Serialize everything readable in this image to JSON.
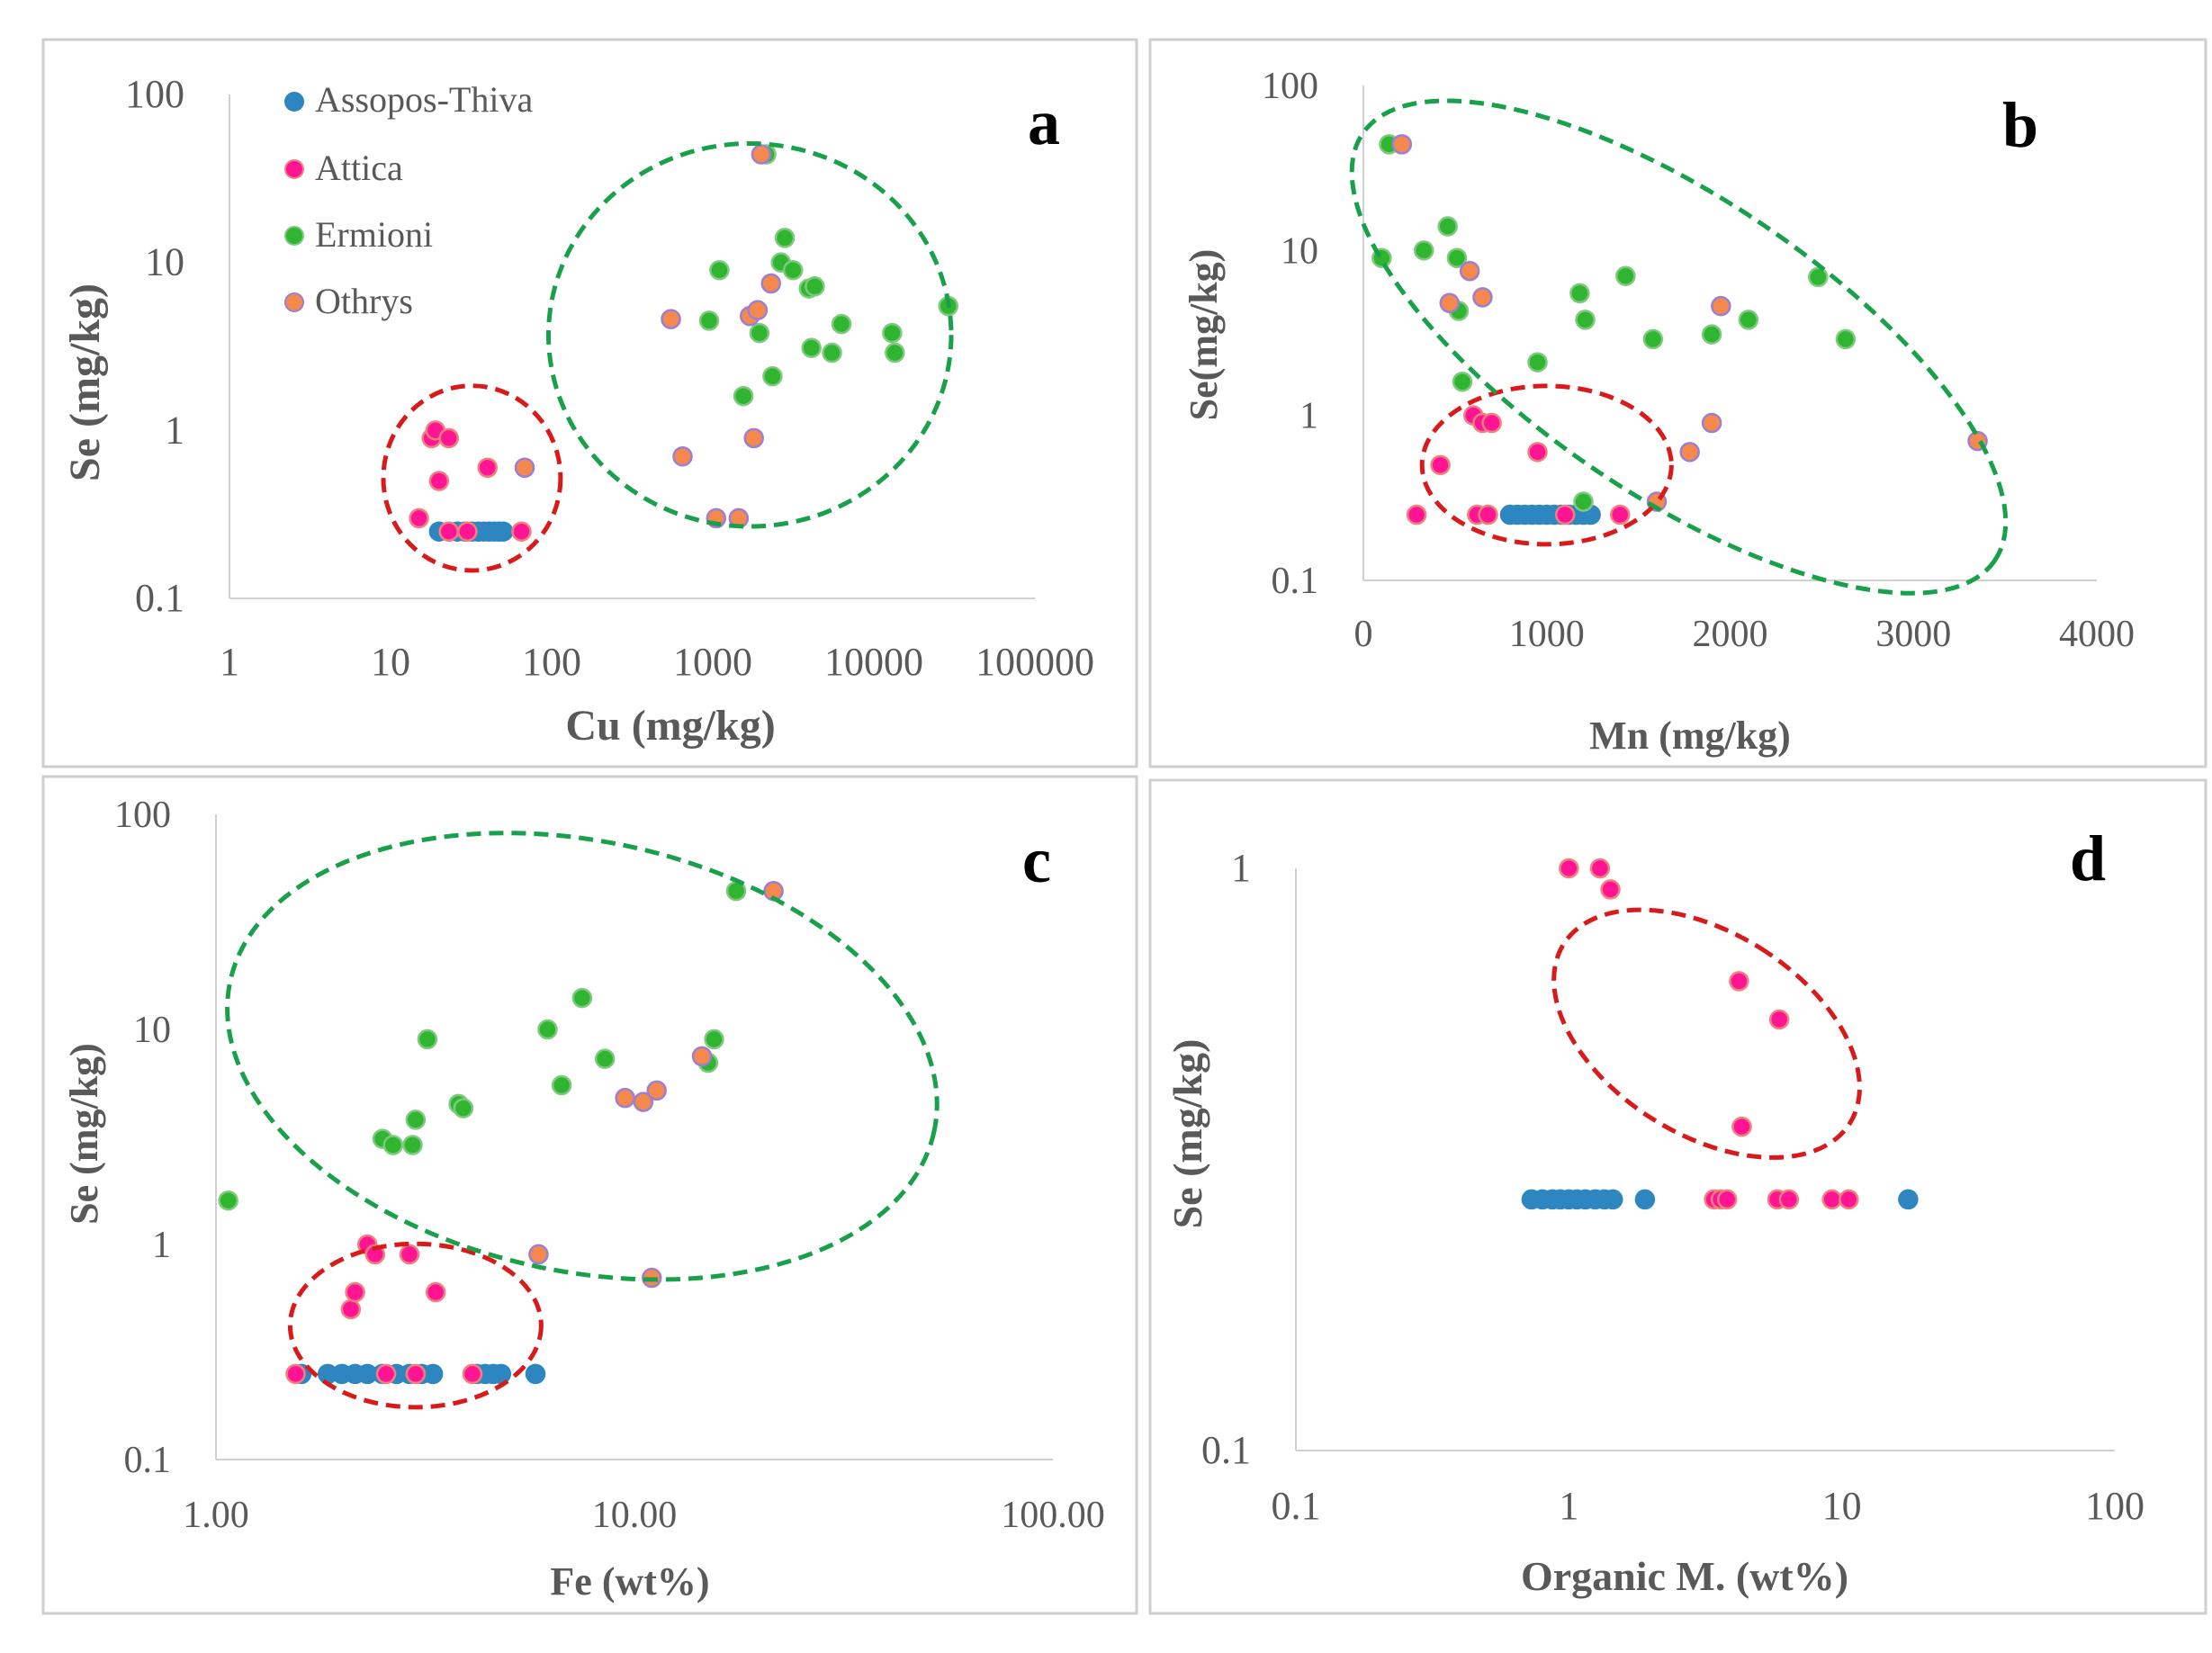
{
  "legend": [
    {
      "name": "Assopos-Thiva",
      "color": "#2e86c1",
      "edge": "#2e86c1"
    },
    {
      "name": "Attica",
      "color": "#ff1493",
      "edge": "#f08080"
    },
    {
      "name": "Ermioni",
      "color": "#2fb52f",
      "edge": "#7fc97f"
    },
    {
      "name": "Othrys",
      "color": "#f5894d",
      "edge": "#9b7fd4"
    }
  ],
  "chart_data": [
    {
      "panel_letter": "a",
      "type": "scatter",
      "x_scale": "log",
      "y_scale": "log",
      "xlabel": "Cu (mg/kg)",
      "ylabel": "Se (mg/kg)",
      "xlim": [
        1,
        100000
      ],
      "ylim": [
        0.1,
        100
      ],
      "x_tick_labels": [
        "1",
        "10",
        "100",
        "1000",
        "10000",
        "100000"
      ],
      "y_tick_labels": [
        "0.1",
        "1",
        "10",
        "100"
      ],
      "show_legend": true,
      "series": [
        {
          "name": "Assopos-Thiva",
          "points": [
            [
              20,
              0.25
            ],
            [
              23,
              0.25
            ],
            [
              26,
              0.25
            ],
            [
              29,
              0.25
            ],
            [
              32,
              0.25
            ],
            [
              35,
              0.25
            ],
            [
              38,
              0.25
            ],
            [
              41,
              0.25
            ],
            [
              44,
              0.25
            ],
            [
              47,
              0.25
            ],
            [
              50,
              0.25
            ]
          ]
        },
        {
          "name": "Attica",
          "points": [
            [
              15,
              0.3
            ],
            [
              18,
              0.9
            ],
            [
              19,
              1.0
            ],
            [
              20,
              0.5
            ],
            [
              23,
              0.9
            ],
            [
              40,
              0.6
            ],
            [
              65,
              0.25
            ],
            [
              23,
              0.25
            ],
            [
              30,
              0.25
            ]
          ]
        },
        {
          "name": "Ermioni",
          "points": [
            [
              950,
              4.5
            ],
            [
              1100,
              9
            ],
            [
              1550,
              1.6
            ],
            [
              1950,
              3.8
            ],
            [
              2150,
              44
            ],
            [
              2350,
              2.1
            ],
            [
              2650,
              10
            ],
            [
              2800,
              14
            ],
            [
              3150,
              9
            ],
            [
              3950,
              7
            ],
            [
              4300,
              7.2
            ],
            [
              4100,
              3.1
            ],
            [
              5500,
              2.9
            ],
            [
              6300,
              4.3
            ],
            [
              13000,
              3.8
            ],
            [
              13500,
              2.9
            ],
            [
              29000,
              5.5
            ]
          ]
        },
        {
          "name": "Othrys",
          "points": [
            [
              550,
              4.6
            ],
            [
              650,
              0.7
            ],
            [
              1050,
              0.3
            ],
            [
              1450,
              0.3
            ],
            [
              1700,
              4.8
            ],
            [
              1800,
              0.9
            ],
            [
              1900,
              5.2
            ],
            [
              2000,
              44
            ],
            [
              2300,
              7.5
            ],
            [
              68,
              0.6
            ]
          ]
        }
      ],
      "ellipses": [
        {
          "color": "#d91a1a",
          "cx": 32,
          "cy": 0.52,
          "rx_dec": 0.55,
          "ry_dec": 0.55,
          "angle": 0
        },
        {
          "color": "#18a04a",
          "cx": 1700,
          "cy": 3.7,
          "rx_dec": 1.25,
          "ry_dec": 1.14,
          "angle": 0
        }
      ]
    },
    {
      "panel_letter": "b",
      "type": "scatter",
      "x_scale": "linear",
      "y_scale": "log",
      "xlabel": "Mn (mg/kg)",
      "ylabel": "Se(mg/kg)",
      "xlim": [
        0,
        4000
      ],
      "ylim": [
        0.1,
        100
      ],
      "x_tick_labels": [
        "0",
        "1000",
        "2000",
        "3000",
        "4000"
      ],
      "y_tick_labels": [
        "0.1",
        "1",
        "10",
        "100"
      ],
      "series": [
        {
          "name": "Assopos-Thiva",
          "points": [
            [
              800,
              0.25
            ],
            [
              840,
              0.25
            ],
            [
              880,
              0.25
            ],
            [
              920,
              0.25
            ],
            [
              960,
              0.25
            ],
            [
              1000,
              0.25
            ],
            [
              1040,
              0.25
            ],
            [
              1080,
              0.25
            ],
            [
              1120,
              0.25
            ],
            [
              1160,
              0.25
            ],
            [
              1200,
              0.25
            ],
            [
              1240,
              0.25
            ]
          ]
        },
        {
          "name": "Attica",
          "points": [
            [
              290,
              0.25
            ],
            [
              420,
              0.5
            ],
            [
              600,
              1.0
            ],
            [
              650,
              0.9
            ],
            [
              700,
              0.9
            ],
            [
              950,
              0.6
            ],
            [
              1400,
              0.25
            ],
            [
              620,
              0.25
            ],
            [
              680,
              0.25
            ],
            [
              1100,
              0.25
            ]
          ]
        },
        {
          "name": "Ermioni",
          "points": [
            [
              100,
              9
            ],
            [
              140,
              44
            ],
            [
              330,
              10
            ],
            [
              460,
              14
            ],
            [
              510,
              9
            ],
            [
              520,
              4.3
            ],
            [
              540,
              1.6
            ],
            [
              950,
              2.1
            ],
            [
              1180,
              5.5
            ],
            [
              1210,
              3.8
            ],
            [
              1200,
              0.3
            ],
            [
              1430,
              7
            ],
            [
              1580,
              2.9
            ],
            [
              1900,
              3.1
            ],
            [
              2100,
              3.8
            ],
            [
              2480,
              6.9
            ],
            [
              2630,
              2.9
            ]
          ]
        },
        {
          "name": "Othrys",
          "points": [
            [
              210,
              44
            ],
            [
              470,
              4.8
            ],
            [
              580,
              7.5
            ],
            [
              650,
              5.2
            ],
            [
              1600,
              0.3
            ],
            [
              1780,
              0.6
            ],
            [
              1900,
              0.9
            ],
            [
              1950,
              4.6
            ],
            [
              3350,
              0.7
            ]
          ]
        }
      ],
      "ellipses": [
        {
          "color": "#d91a1a",
          "cx": 1000,
          "cy": 0.5,
          "rx_pct": 0.17,
          "ry_dec": 0.48,
          "angle": 0
        },
        {
          "color": "#18a04a",
          "cx": 1720,
          "cy": 2.6,
          "rx_pct": 0.52,
          "ry_dec": 0.9,
          "angle": 34
        }
      ]
    },
    {
      "panel_letter": "c",
      "type": "scatter",
      "x_scale": "log",
      "y_scale": "log",
      "xlabel": "Fe (wt%)",
      "ylabel": "Se (mg/kg)",
      "xlim": [
        1,
        100
      ],
      "ylim": [
        0.1,
        100
      ],
      "x_tick_labels": [
        "1.00",
        "10.00",
        "100.00"
      ],
      "y_tick_labels": [
        "0.1",
        "1",
        "10",
        "100"
      ],
      "series": [
        {
          "name": "Assopos-Thiva",
          "points": [
            [
              1.6,
              0.25
            ],
            [
              1.85,
              0.25
            ],
            [
              2.0,
              0.25
            ],
            [
              2.15,
              0.25
            ],
            [
              2.3,
              0.25
            ],
            [
              2.5,
              0.25
            ],
            [
              2.7,
              0.25
            ],
            [
              2.9,
              0.25
            ],
            [
              3.1,
              0.25
            ],
            [
              3.3,
              0.25
            ],
            [
              4.2,
              0.25
            ],
            [
              4.4,
              0.25
            ],
            [
              4.6,
              0.25
            ],
            [
              4.8,
              0.25
            ],
            [
              5.8,
              0.25
            ]
          ]
        },
        {
          "name": "Attica",
          "points": [
            [
              1.55,
              0.25
            ],
            [
              2.1,
              0.5
            ],
            [
              2.15,
              0.6
            ],
            [
              2.3,
              1.0
            ],
            [
              2.4,
              0.9
            ],
            [
              2.9,
              0.9
            ],
            [
              3.35,
              0.6
            ],
            [
              2.55,
              0.25
            ],
            [
              3.0,
              0.25
            ],
            [
              4.1,
              0.25
            ]
          ]
        },
        {
          "name": "Ermioni",
          "points": [
            [
              1.07,
              1.6
            ],
            [
              2.5,
              3.1
            ],
            [
              2.65,
              2.9
            ],
            [
              2.95,
              2.9
            ],
            [
              3.0,
              3.8
            ],
            [
              3.2,
              9
            ],
            [
              3.8,
              4.5
            ],
            [
              3.9,
              4.3
            ],
            [
              6.2,
              10
            ],
            [
              6.7,
              5.5
            ],
            [
              7.5,
              14
            ],
            [
              8.5,
              7.3
            ],
            [
              15,
              7
            ],
            [
              15.5,
              9
            ],
            [
              17.5,
              44
            ]
          ]
        },
        {
          "name": "Othrys",
          "points": [
            [
              5.9,
              0.9
            ],
            [
              9.5,
              4.8
            ],
            [
              10.5,
              4.6
            ],
            [
              11,
              0.7
            ],
            [
              11.3,
              5.2
            ],
            [
              14.5,
              7.5
            ],
            [
              21.5,
              44
            ]
          ]
        }
      ],
      "ellipses": [
        {
          "color": "#d91a1a",
          "cx": 3.0,
          "cy": 0.42,
          "rx_dec": 0.3,
          "ry_dec": 0.38,
          "angle": 0
        },
        {
          "color": "#18a04a",
          "cx": 7.5,
          "cy": 7.5,
          "rx_dec": 0.86,
          "ry_dec": 1.0,
          "angle": 12
        }
      ]
    },
    {
      "panel_letter": "d",
      "type": "scatter",
      "x_scale": "log",
      "y_scale": "log",
      "xlabel": "Organic M. (wt%)",
      "ylabel": "Se (mg/kg)",
      "xlim": [
        0.1,
        100
      ],
      "ylim": [
        0.1,
        1
      ],
      "x_tick_labels": [
        "0.1",
        "1",
        "10",
        "100"
      ],
      "y_tick_labels": [
        "0.1",
        "1"
      ],
      "series": [
        {
          "name": "Assopos-Thiva",
          "points": [
            [
              0.73,
              0.27
            ],
            [
              0.8,
              0.27
            ],
            [
              0.87,
              0.27
            ],
            [
              0.93,
              0.27
            ],
            [
              1.0,
              0.27
            ],
            [
              1.07,
              0.27
            ],
            [
              1.15,
              0.27
            ],
            [
              1.25,
              0.27
            ],
            [
              1.35,
              0.27
            ],
            [
              1.45,
              0.27
            ],
            [
              1.9,
              0.27
            ],
            [
              17.5,
              0.27
            ]
          ]
        },
        {
          "name": "Attica",
          "points": [
            [
              1.0,
              1.0
            ],
            [
              1.3,
              1.0
            ],
            [
              1.42,
              0.92
            ],
            [
              4.2,
              0.64
            ],
            [
              5.9,
              0.55
            ],
            [
              4.3,
              0.36
            ],
            [
              3.4,
              0.27
            ],
            [
              3.6,
              0.27
            ],
            [
              3.8,
              0.27
            ],
            [
              5.8,
              0.27
            ],
            [
              6.4,
              0.27
            ],
            [
              9.2,
              0.27
            ],
            [
              10.6,
              0.27
            ]
          ]
        }
      ],
      "ellipses": [
        {
          "color": "#d91a1a",
          "cx": 3.2,
          "cy": 0.52,
          "rx_dec": 0.37,
          "ry_dec": 0.29,
          "angle": -58
        }
      ]
    }
  ]
}
